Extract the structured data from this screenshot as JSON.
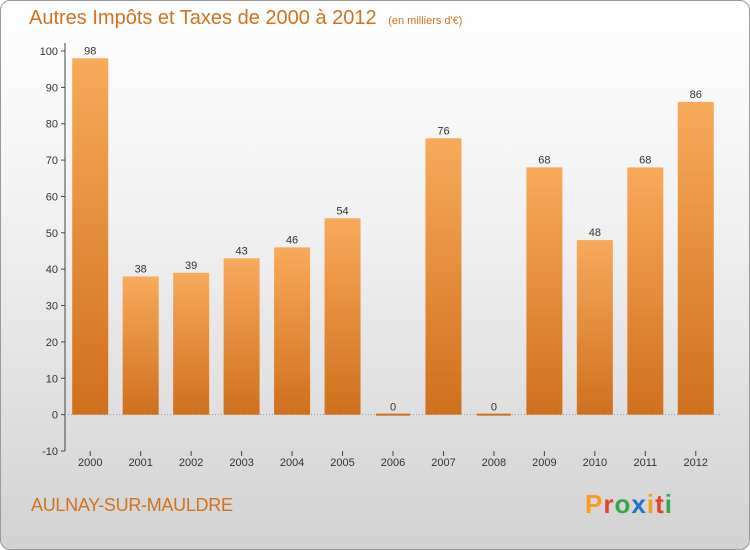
{
  "chart_data": {
    "type": "bar",
    "title": "Autres Impôts et Taxes de 2000 à 2012",
    "unit_note": "(en milliers d'€)",
    "categories": [
      "2000",
      "2001",
      "2002",
      "2003",
      "2004",
      "2005",
      "2006",
      "2007",
      "2008",
      "2009",
      "2010",
      "2011",
      "2012"
    ],
    "values": [
      98,
      38,
      39,
      43,
      46,
      54,
      0,
      76,
      0,
      68,
      48,
      68,
      86
    ],
    "ylim": [
      -10,
      100
    ],
    "yticks": [
      -10,
      0,
      10,
      20,
      30,
      40,
      50,
      60,
      70,
      80,
      90,
      100
    ],
    "grid": false,
    "colors": {
      "bar_light": "#f8aa5b",
      "bar_dark": "#cf701d",
      "accent": "#d2721c"
    }
  },
  "footer": {
    "commune": "AULNAY-SUR-MAULDRE",
    "logo_text": "Proxiti",
    "logo_colors": [
      "#f59e1a",
      "#e2452c",
      "#3aa64b",
      "#1f74c9",
      "#f59e1a",
      "#e2452c",
      "#3aa64b"
    ]
  }
}
